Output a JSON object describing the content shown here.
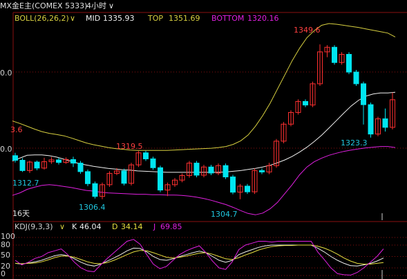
{
  "header": {
    "symbol": "MX金E主(COMEX 5333)",
    "period": "4小时",
    "dropdown_mark": "∨"
  },
  "main_panel": {
    "indicator": "BOLL(26,26,2)",
    "mid_label": "MID",
    "mid_value": "1335.93",
    "top_label": "TOP",
    "top_value": "1351.69",
    "bottom_label": "BOTTOM",
    "bottom_value": "1320.16",
    "axis_labels": [
      "0.0",
      "0.0"
    ],
    "annotations": [
      {
        "text": "1349.6",
        "color": "#ff4040"
      },
      {
        "text": "1319.5",
        "color": "#ff4040"
      },
      {
        "text": "3.6",
        "color": "#ff4040"
      },
      {
        "text": "1312.7",
        "color": "#20c8e0"
      },
      {
        "text": "1306.4",
        "color": "#20c8e0"
      },
      {
        "text": "1304.7",
        "color": "#20c8e0"
      },
      {
        "text": "1323.3",
        "color": "#20c8e0"
      }
    ],
    "period_tag": "16天"
  },
  "kdj_panel": {
    "indicator": "KDJ(9,3,3)",
    "k_label": "K",
    "k_value": "46.04",
    "d_label": "D",
    "d_value": "34.14",
    "j_label": "J",
    "j_value": "69.85",
    "axis_labels": [
      "100",
      "80",
      "50",
      "20",
      "0"
    ]
  },
  "colors": {
    "background": "#000000",
    "up": "#ff3030",
    "down": "#00e5f0",
    "mid": "#f0f0f0",
    "top": "#d8d040",
    "bottom": "#e020e0",
    "k": "#f0f0f0",
    "d": "#e8e040",
    "j": "#e020e0",
    "grid": "#8a1010"
  },
  "chart_data": [
    {
      "type": "candlestick",
      "title": "BOLL(26,26,2)",
      "series": [
        {
          "name": "MID",
          "values": [
            1316.7,
            1317.5,
            1318.3,
            1318.4,
            1318.4,
            1318.2,
            1317.8,
            1317.2,
            1316.6,
            1316.0,
            1315.6,
            1315.2,
            1314.9,
            1314.6,
            1314.4,
            1314.2,
            1314.1,
            1313.9,
            1313.8,
            1313.7,
            1313.6,
            1313.5,
            1313.5,
            1313.5,
            1313.5,
            1313.5,
            1313.5,
            1313.5,
            1313.5,
            1313.6,
            1313.8,
            1314.0,
            1314.3,
            1314.6,
            1315.0,
            1315.5,
            1316.2,
            1317.0,
            1318.0,
            1319.2,
            1320.6,
            1322.2,
            1324.0,
            1326.0,
            1328.1,
            1330.2,
            1332.2,
            1333.8,
            1335.0,
            1335.6,
            1335.9,
            1335.9,
            1336.1
          ]
        },
        {
          "name": "TOP",
          "values": [
            1328.0,
            1327.3,
            1326.5,
            1325.7,
            1325.0,
            1324.5,
            1324.2,
            1323.8,
            1323.2,
            1322.5,
            1321.8,
            1321.3,
            1320.9,
            1320.5,
            1320.2,
            1320.0,
            1319.8,
            1319.7,
            1319.7,
            1319.7,
            1319.7,
            1319.7,
            1319.8,
            1319.9,
            1320.0,
            1320.1,
            1320.2,
            1320.3,
            1320.5,
            1320.8,
            1321.4,
            1322.4,
            1324.0,
            1326.5,
            1329.5,
            1333.0,
            1337.0,
            1341.0,
            1345.0,
            1348.5,
            1351.5,
            1353.5,
            1355.0,
            1355.5,
            1355.3,
            1355.0,
            1354.7,
            1354.4,
            1354.0,
            1353.6,
            1353.2,
            1352.8,
            1351.7
          ]
        },
        {
          "name": "BOTTOM",
          "values": [
            1307.0,
            1307.7,
            1308.7,
            1309.3,
            1309.8,
            1310.0,
            1309.8,
            1309.5,
            1309.2,
            1308.8,
            1308.4,
            1308.2,
            1307.9,
            1307.7,
            1307.6,
            1307.5,
            1307.4,
            1307.3,
            1307.3,
            1307.2,
            1307.2,
            1307.1,
            1307.1,
            1307.0,
            1306.8,
            1306.5,
            1306.1,
            1305.6,
            1305.0,
            1304.4,
            1303.6,
            1302.7,
            1301.9,
            1301.5,
            1302.0,
            1303.2,
            1305.0,
            1307.5,
            1310.0,
            1312.8,
            1315.0,
            1316.5,
            1317.5,
            1318.3,
            1318.9,
            1319.4,
            1319.8,
            1320.1,
            1320.4,
            1320.6,
            1320.8,
            1320.8,
            1320.5
          ]
        }
      ],
      "candles": [
        [
          1318.2,
          1316.9,
          1319.0,
          1316.3
        ],
        [
          1316.9,
          1314.0,
          1317.5,
          1313.6
        ],
        [
          1314.0,
          1316.4,
          1316.8,
          1313.3
        ],
        [
          1316.4,
          1314.7,
          1316.8,
          1314.1
        ],
        [
          1314.7,
          1316.5,
          1317.6,
          1314.3
        ],
        [
          1316.5,
          1317.0,
          1317.8,
          1315.9
        ],
        [
          1317.0,
          1316.3,
          1317.6,
          1315.7
        ],
        [
          1316.3,
          1317.1,
          1317.7,
          1315.9
        ],
        [
          1317.1,
          1316.1,
          1317.9,
          1315.0
        ],
        [
          1316.1,
          1313.7,
          1316.7,
          1313.1
        ],
        [
          1313.7,
          1310.3,
          1314.3,
          1309.6
        ],
        [
          1310.3,
          1306.7,
          1310.9,
          1306.1
        ],
        [
          1306.7,
          1310.0,
          1310.6,
          1305.9
        ],
        [
          1310.0,
          1313.2,
          1313.8,
          1309.4
        ],
        [
          1313.2,
          1313.9,
          1314.7,
          1312.7
        ],
        [
          1313.9,
          1310.4,
          1314.5,
          1309.8
        ],
        [
          1310.4,
          1315.6,
          1316.2,
          1309.8
        ],
        [
          1315.6,
          1319.0,
          1319.5,
          1315.0
        ],
        [
          1319.0,
          1317.3,
          1319.6,
          1316.7
        ],
        [
          1317.3,
          1314.8,
          1317.9,
          1314.2
        ],
        [
          1314.8,
          1308.5,
          1315.4,
          1307.9
        ],
        [
          1308.5,
          1310.0,
          1310.6,
          1306.8
        ],
        [
          1310.0,
          1311.3,
          1311.9,
          1309.4
        ],
        [
          1311.3,
          1312.6,
          1313.2,
          1310.7
        ],
        [
          1312.6,
          1316.1,
          1316.7,
          1312.0
        ],
        [
          1316.1,
          1312.7,
          1316.7,
          1312.1
        ],
        [
          1312.7,
          1315.0,
          1315.6,
          1312.1
        ],
        [
          1315.0,
          1313.3,
          1315.6,
          1312.7
        ],
        [
          1313.3,
          1315.4,
          1316.0,
          1312.7
        ],
        [
          1315.4,
          1312.2,
          1316.0,
          1311.6
        ],
        [
          1312.2,
          1307.9,
          1312.8,
          1307.3
        ],
        [
          1307.9,
          1309.6,
          1310.2,
          1305.9
        ],
        [
          1309.6,
          1308.0,
          1310.2,
          1307.4
        ],
        [
          1308.0,
          1314.0,
          1314.6,
          1307.4
        ],
        [
          1314.0,
          1313.6,
          1314.6,
          1313.0
        ],
        [
          1313.6,
          1315.4,
          1316.2,
          1313.0
        ],
        [
          1315.4,
          1322.3,
          1322.9,
          1314.8
        ],
        [
          1322.3,
          1327.1,
          1327.7,
          1321.7
        ],
        [
          1327.1,
          1330.4,
          1331.0,
          1326.5
        ],
        [
          1330.4,
          1333.5,
          1334.1,
          1329.8
        ],
        [
          1333.5,
          1332.5,
          1334.1,
          1331.9
        ],
        [
          1332.5,
          1338.5,
          1339.1,
          1331.9
        ],
        [
          1338.5,
          1347.5,
          1349.6,
          1337.9
        ],
        [
          1347.5,
          1348.8,
          1349.4,
          1346.0
        ],
        [
          1348.8,
          1344.5,
          1349.4,
          1343.9
        ],
        [
          1344.5,
          1346.8,
          1347.4,
          1343.9
        ],
        [
          1346.8,
          1341.8,
          1347.4,
          1341.2
        ],
        [
          1341.8,
          1338.5,
          1342.4,
          1337.9
        ],
        [
          1338.5,
          1332.6,
          1339.1,
          1327.0
        ],
        [
          1332.6,
          1324.3,
          1333.2,
          1323.3
        ],
        [
          1324.3,
          1328.6,
          1329.2,
          1323.7
        ],
        [
          1328.6,
          1326.2,
          1331.5,
          1325.0
        ],
        [
          1326.2,
          1334.0,
          1336.0,
          1325.6
        ]
      ],
      "ylim": [
        1300.0,
        1355.3
      ],
      "annotations_values": [
        1349.6,
        1319.5,
        1312.7,
        1306.4,
        1304.7,
        1323.3
      ]
    },
    {
      "type": "line",
      "title": "KDJ(9,3,3)",
      "ylim": [
        -20,
        120
      ],
      "yticks": [
        0,
        20,
        50,
        80,
        100
      ],
      "series": [
        {
          "name": "K",
          "values": [
            32,
            30,
            33,
            36,
            40,
            46,
            52,
            55,
            52,
            44,
            35,
            28,
            25,
            30,
            38,
            46,
            55,
            65,
            72,
            71,
            62,
            50,
            42,
            40,
            44,
            50,
            55,
            60,
            64,
            60,
            50,
            40,
            35,
            40,
            55,
            62,
            68,
            74,
            78,
            80,
            80,
            80,
            80,
            80,
            80,
            80,
            72,
            62,
            50,
            40,
            32,
            26,
            25,
            28,
            32,
            38,
            46
          ]
        },
        {
          "name": "D",
          "values": [
            32,
            31,
            32,
            33,
            36,
            41,
            47,
            51,
            51,
            48,
            42,
            36,
            32,
            31,
            34,
            40,
            47,
            55,
            62,
            66,
            65,
            60,
            54,
            48,
            46,
            48,
            51,
            55,
            59,
            60,
            56,
            50,
            44,
            42,
            47,
            54,
            60,
            67,
            72,
            76,
            78,
            79,
            79,
            80,
            80,
            80,
            77,
            72,
            65,
            56,
            46,
            38,
            32,
            30,
            30,
            32,
            34
          ]
        },
        {
          "name": "J",
          "values": [
            40,
            28,
            35,
            45,
            50,
            60,
            65,
            70,
            55,
            35,
            20,
            12,
            10,
            28,
            45,
            60,
            75,
            90,
            95,
            82,
            55,
            30,
            18,
            24,
            40,
            55,
            65,
            72,
            78,
            60,
            38,
            20,
            16,
            36,
            68,
            80,
            85,
            90,
            90,
            88,
            90,
            90,
            90,
            90,
            90,
            90,
            62,
            42,
            20,
            5,
            2,
            1,
            8,
            20,
            35,
            50,
            70
          ]
        }
      ]
    }
  ]
}
